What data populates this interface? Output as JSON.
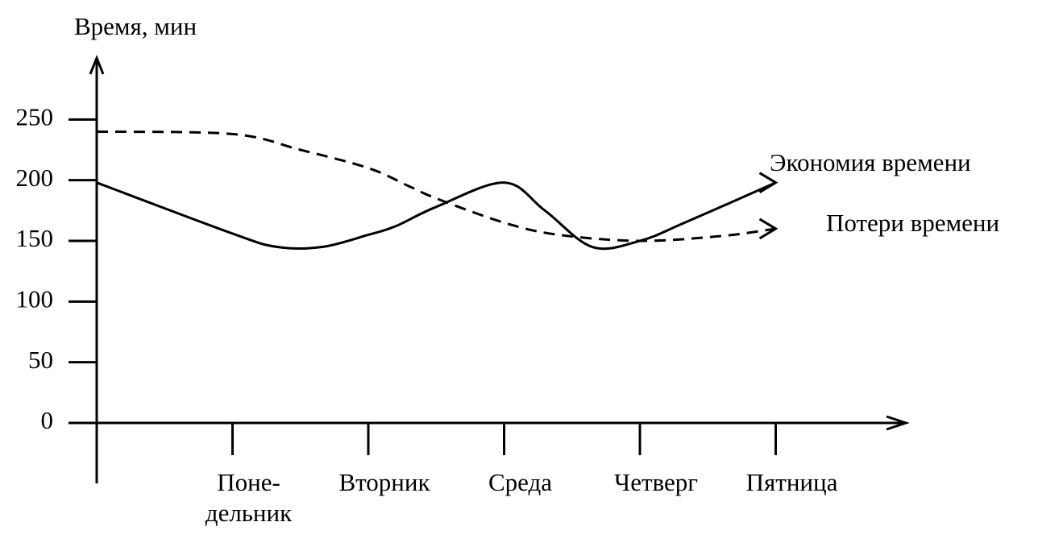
{
  "chart_data": {
    "type": "line",
    "y_label": "Время, мин",
    "xlim": [
      0,
      6
    ],
    "ylim": [
      0,
      300
    ],
    "yticks": [
      0,
      50,
      100,
      150,
      200,
      250
    ],
    "xticks": [
      {
        "value": 1,
        "label": [
          "Поне-",
          "дельник"
        ]
      },
      {
        "value": 2,
        "label": [
          "Вторник"
        ]
      },
      {
        "value": 3,
        "label": [
          "Среда"
        ]
      },
      {
        "value": 4,
        "label": [
          "Четверг"
        ]
      },
      {
        "value": 5,
        "label": [
          "Пятница"
        ]
      }
    ],
    "series": [
      {
        "name": "Экономия времени",
        "color": "#000000",
        "dash": false,
        "x": [
          0,
          1,
          1.33,
          1.66,
          2,
          2.2,
          2.5,
          3,
          3.3,
          3.65,
          4,
          4.33,
          5
        ],
        "values": [
          198,
          156,
          145,
          145,
          155,
          162,
          178,
          198,
          175,
          145,
          150,
          165,
          198
        ]
      },
      {
        "name": "Потери времени",
        "color": "#000000",
        "dash": true,
        "x": [
          0,
          1,
          1.5,
          2,
          2.3,
          2.5,
          3,
          3.4,
          4,
          4.6,
          5
        ],
        "values": [
          240,
          238,
          225,
          210,
          195,
          185,
          165,
          155,
          150,
          154,
          160
        ]
      }
    ]
  }
}
